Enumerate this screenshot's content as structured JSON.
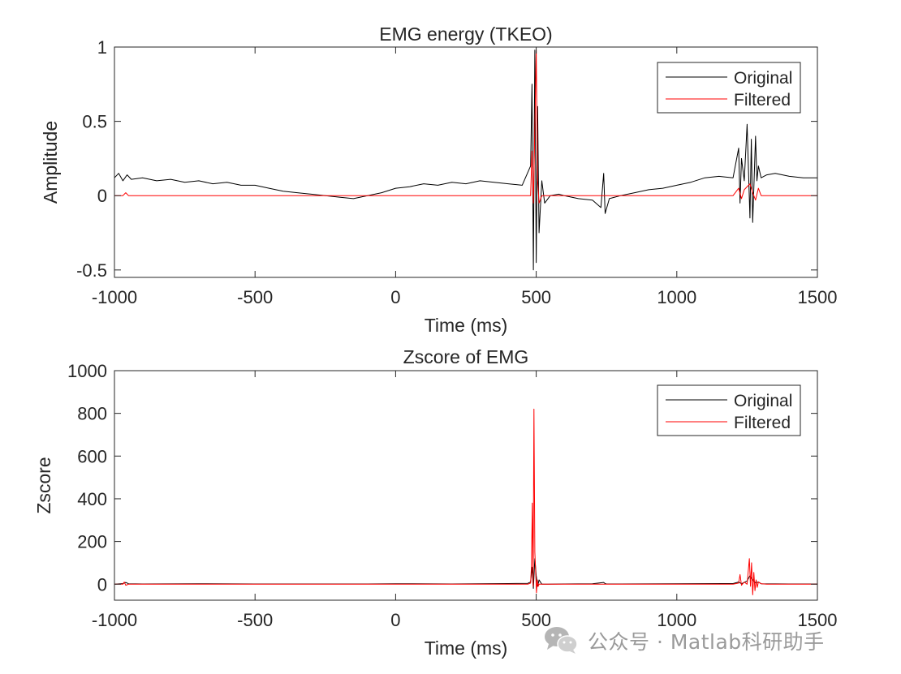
{
  "chart_data": [
    {
      "type": "line",
      "title": "EMG energy (TKEO)",
      "xlabel": "Time (ms)",
      "ylabel": "Amplitude",
      "xlim": [
        -1000,
        1500
      ],
      "ylim": [
        -0.55,
        1
      ],
      "xticks": [
        -1000,
        -500,
        0,
        500,
        1000,
        1500
      ],
      "yticks": [
        -0.5,
        0,
        0.5,
        1
      ],
      "legend_position": "top-right",
      "grid": false,
      "series": [
        {
          "name": "Original",
          "color": "#000000",
          "x": [
            -1000,
            -985,
            -970,
            -955,
            -940,
            -900,
            -850,
            -800,
            -750,
            -700,
            -650,
            -600,
            -550,
            -500,
            -450,
            -400,
            -350,
            -300,
            -250,
            -200,
            -150,
            -100,
            -50,
            0,
            50,
            100,
            150,
            200,
            250,
            300,
            350,
            400,
            450,
            480,
            485,
            490,
            495,
            500,
            505,
            510,
            520,
            530,
            550,
            580,
            600,
            650,
            700,
            730,
            740,
            745,
            760,
            800,
            850,
            900,
            950,
            1000,
            1050,
            1100,
            1150,
            1200,
            1220,
            1225,
            1230,
            1240,
            1250,
            1260,
            1265,
            1270,
            1280,
            1285,
            1290,
            1300,
            1320,
            1350,
            1400,
            1450,
            1500
          ],
          "y": [
            0.12,
            0.15,
            0.1,
            0.14,
            0.11,
            0.12,
            0.1,
            0.11,
            0.09,
            0.1,
            0.08,
            0.09,
            0.07,
            0.07,
            0.05,
            0.03,
            0.02,
            0.01,
            0.0,
            -0.01,
            -0.02,
            0.0,
            0.02,
            0.05,
            0.06,
            0.08,
            0.07,
            0.09,
            0.08,
            0.1,
            0.09,
            0.08,
            0.07,
            0.2,
            0.75,
            -0.5,
            0.98,
            -0.45,
            0.6,
            -0.25,
            0.1,
            -0.05,
            0.0,
            0.01,
            0.0,
            -0.02,
            -0.03,
            -0.08,
            0.15,
            -0.12,
            -0.02,
            0.0,
            0.02,
            0.04,
            0.05,
            0.07,
            0.09,
            0.12,
            0.13,
            0.12,
            0.32,
            -0.05,
            0.25,
            0.1,
            0.48,
            -0.15,
            0.38,
            -0.18,
            0.4,
            0.1,
            0.2,
            0.12,
            0.14,
            0.15,
            0.13,
            0.12,
            0.12
          ]
        },
        {
          "name": "Filtered",
          "color": "#ff0000",
          "x": [
            -1000,
            -970,
            -960,
            -950,
            -900,
            -800,
            -700,
            -600,
            -500,
            -400,
            -300,
            -200,
            -100,
            0,
            100,
            200,
            300,
            400,
            480,
            485,
            490,
            495,
            500,
            505,
            510,
            520,
            550,
            600,
            700,
            800,
            900,
            1000,
            1100,
            1200,
            1220,
            1230,
            1240,
            1260,
            1270,
            1280,
            1290,
            1300,
            1350,
            1400,
            1500
          ],
          "y": [
            0.0,
            0.0,
            0.02,
            0.0,
            0.0,
            0.0,
            0.0,
            0.0,
            0.0,
            0.0,
            0.0,
            0.0,
            0.0,
            0.0,
            0.0,
            0.0,
            0.0,
            0.0,
            0.0,
            0.3,
            -0.05,
            0.45,
            0.98,
            0.1,
            -0.05,
            0.0,
            0.0,
            0.0,
            0.0,
            0.0,
            0.0,
            0.0,
            0.0,
            0.0,
            0.05,
            -0.02,
            0.04,
            0.08,
            0.02,
            -0.03,
            0.05,
            0.0,
            0.0,
            0.0,
            0.0
          ]
        }
      ]
    },
    {
      "type": "line",
      "title": "Zscore of EMG",
      "xlabel": "Time (ms)",
      "ylabel": "Zscore",
      "xlim": [
        -1000,
        1500
      ],
      "ylim": [
        -75,
        1000
      ],
      "xticks": [
        -1000,
        -500,
        0,
        500,
        1000,
        1500
      ],
      "yticks": [
        0,
        200,
        400,
        600,
        800,
        1000
      ],
      "legend_position": "top-right",
      "grid": false,
      "series": [
        {
          "name": "Original",
          "color": "#000000",
          "x": [
            -1000,
            -970,
            -960,
            -950,
            -900,
            -700,
            -500,
            -300,
            -100,
            0,
            200,
            400,
            470,
            480,
            485,
            490,
            495,
            500,
            505,
            510,
            520,
            540,
            600,
            700,
            740,
            745,
            750,
            800,
            1000,
            1200,
            1220,
            1230,
            1250,
            1260,
            1270,
            1280,
            1290,
            1300,
            1400,
            1500
          ],
          "y": [
            0,
            3,
            8,
            2,
            1,
            2,
            1,
            1,
            1,
            2,
            1,
            3,
            4,
            10,
            80,
            -20,
            120,
            40,
            -10,
            20,
            0,
            0,
            1,
            2,
            8,
            3,
            1,
            1,
            2,
            3,
            10,
            2,
            15,
            40,
            20,
            6,
            10,
            2,
            1,
            1
          ]
        },
        {
          "name": "Filtered",
          "color": "#ff0000",
          "x": [
            -1000,
            -970,
            -965,
            -960,
            -950,
            -900,
            -700,
            -500,
            -300,
            -100,
            0,
            200,
            400,
            470,
            480,
            483,
            486,
            489,
            492,
            495,
            498,
            501,
            504,
            507,
            510,
            520,
            540,
            600,
            700,
            800,
            1000,
            1200,
            1220,
            1225,
            1230,
            1240,
            1250,
            1258,
            1262,
            1266,
            1270,
            1274,
            1278,
            1282,
            1286,
            1290,
            1300,
            1320,
            1400,
            1500
          ],
          "y": [
            0,
            0,
            10,
            -5,
            0,
            0,
            0,
            0,
            0,
            0,
            0,
            0,
            0,
            0,
            5,
            80,
            380,
            -10,
            820,
            150,
            60,
            -40,
            20,
            -10,
            0,
            0,
            0,
            0,
            0,
            0,
            0,
            0,
            5,
            45,
            -5,
            10,
            0,
            120,
            -10,
            100,
            -50,
            55,
            -30,
            20,
            -15,
            10,
            2,
            0,
            0,
            0
          ]
        }
      ]
    }
  ],
  "watermark": {
    "text": "公众号 · Matlab科研助手",
    "icon": "wechat-icon"
  }
}
